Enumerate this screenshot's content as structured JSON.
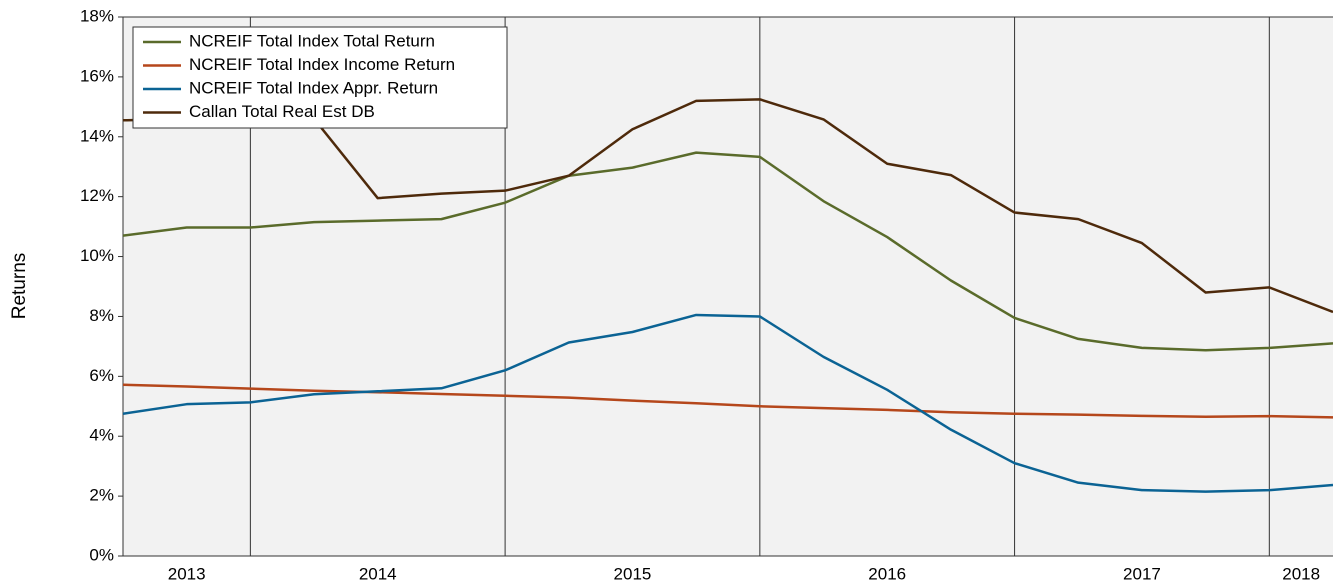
{
  "chart_data": {
    "type": "line",
    "y_label": "Returns",
    "categories": [
      null,
      null,
      null,
      null,
      null,
      null,
      null,
      null,
      null,
      null,
      null,
      null,
      null,
      null,
      null,
      null,
      null,
      null,
      null,
      null
    ],
    "xlim": [
      0,
      19
    ],
    "xticks": [
      {
        "value": 1,
        "label": "2013"
      },
      {
        "value": 4,
        "label": "2014"
      },
      {
        "value": 8,
        "label": "2015"
      },
      {
        "value": 12,
        "label": "2016"
      },
      {
        "value": 16,
        "label": "2017"
      },
      {
        "value": 18.5,
        "label": "2018"
      }
    ],
    "xgrid": [
      2,
      6,
      10,
      14,
      18
    ],
    "ylim": [
      0,
      18
    ],
    "yticks": [
      {
        "value": 0,
        "label": "0%"
      },
      {
        "value": 2,
        "label": "2%"
      },
      {
        "value": 4,
        "label": "4%"
      },
      {
        "value": 6,
        "label": "6%"
      },
      {
        "value": 8,
        "label": "8%"
      },
      {
        "value": 10,
        "label": "10%"
      },
      {
        "value": 12,
        "label": "12%"
      },
      {
        "value": 14,
        "label": "14%"
      },
      {
        "value": 16,
        "label": "16%"
      },
      {
        "value": 18,
        "label": "18%"
      }
    ],
    "legend": "top-left",
    "series": [
      {
        "name": "NCREIF Total Index Total Return",
        "color": "#5a6b2b",
        "values": [
          10.7,
          10.97,
          10.97,
          11.15,
          11.2,
          11.25,
          11.8,
          12.7,
          12.97,
          13.47,
          13.33,
          11.85,
          10.65,
          9.2,
          7.95,
          7.25,
          6.95,
          6.87,
          6.95,
          7.1
        ]
      },
      {
        "name": "NCREIF Total Index Income Return",
        "color": "#b5471b",
        "values": [
          5.72,
          5.66,
          5.59,
          5.52,
          5.47,
          5.41,
          5.35,
          5.29,
          5.19,
          5.1,
          5.0,
          4.94,
          4.88,
          4.8,
          4.75,
          4.72,
          4.68,
          4.65,
          4.67,
          4.63
        ]
      },
      {
        "name": "NCREIF Total Index Appr. Return",
        "color": "#0b6394",
        "values": [
          4.75,
          5.07,
          5.13,
          5.4,
          5.5,
          5.6,
          6.2,
          7.13,
          7.48,
          8.05,
          8.0,
          6.65,
          5.55,
          4.22,
          3.1,
          2.45,
          2.2,
          2.15,
          2.2,
          2.37
        ]
      },
      {
        "name": "Callan Total Real Est DB",
        "color": "#4e2a0b",
        "values": [
          14.55,
          14.6,
          14.7,
          14.6,
          11.95,
          12.1,
          12.2,
          12.7,
          14.25,
          15.2,
          15.25,
          14.58,
          13.1,
          12.72,
          11.47,
          11.25,
          10.45,
          8.8,
          8.97,
          8.15
        ]
      }
    ]
  }
}
